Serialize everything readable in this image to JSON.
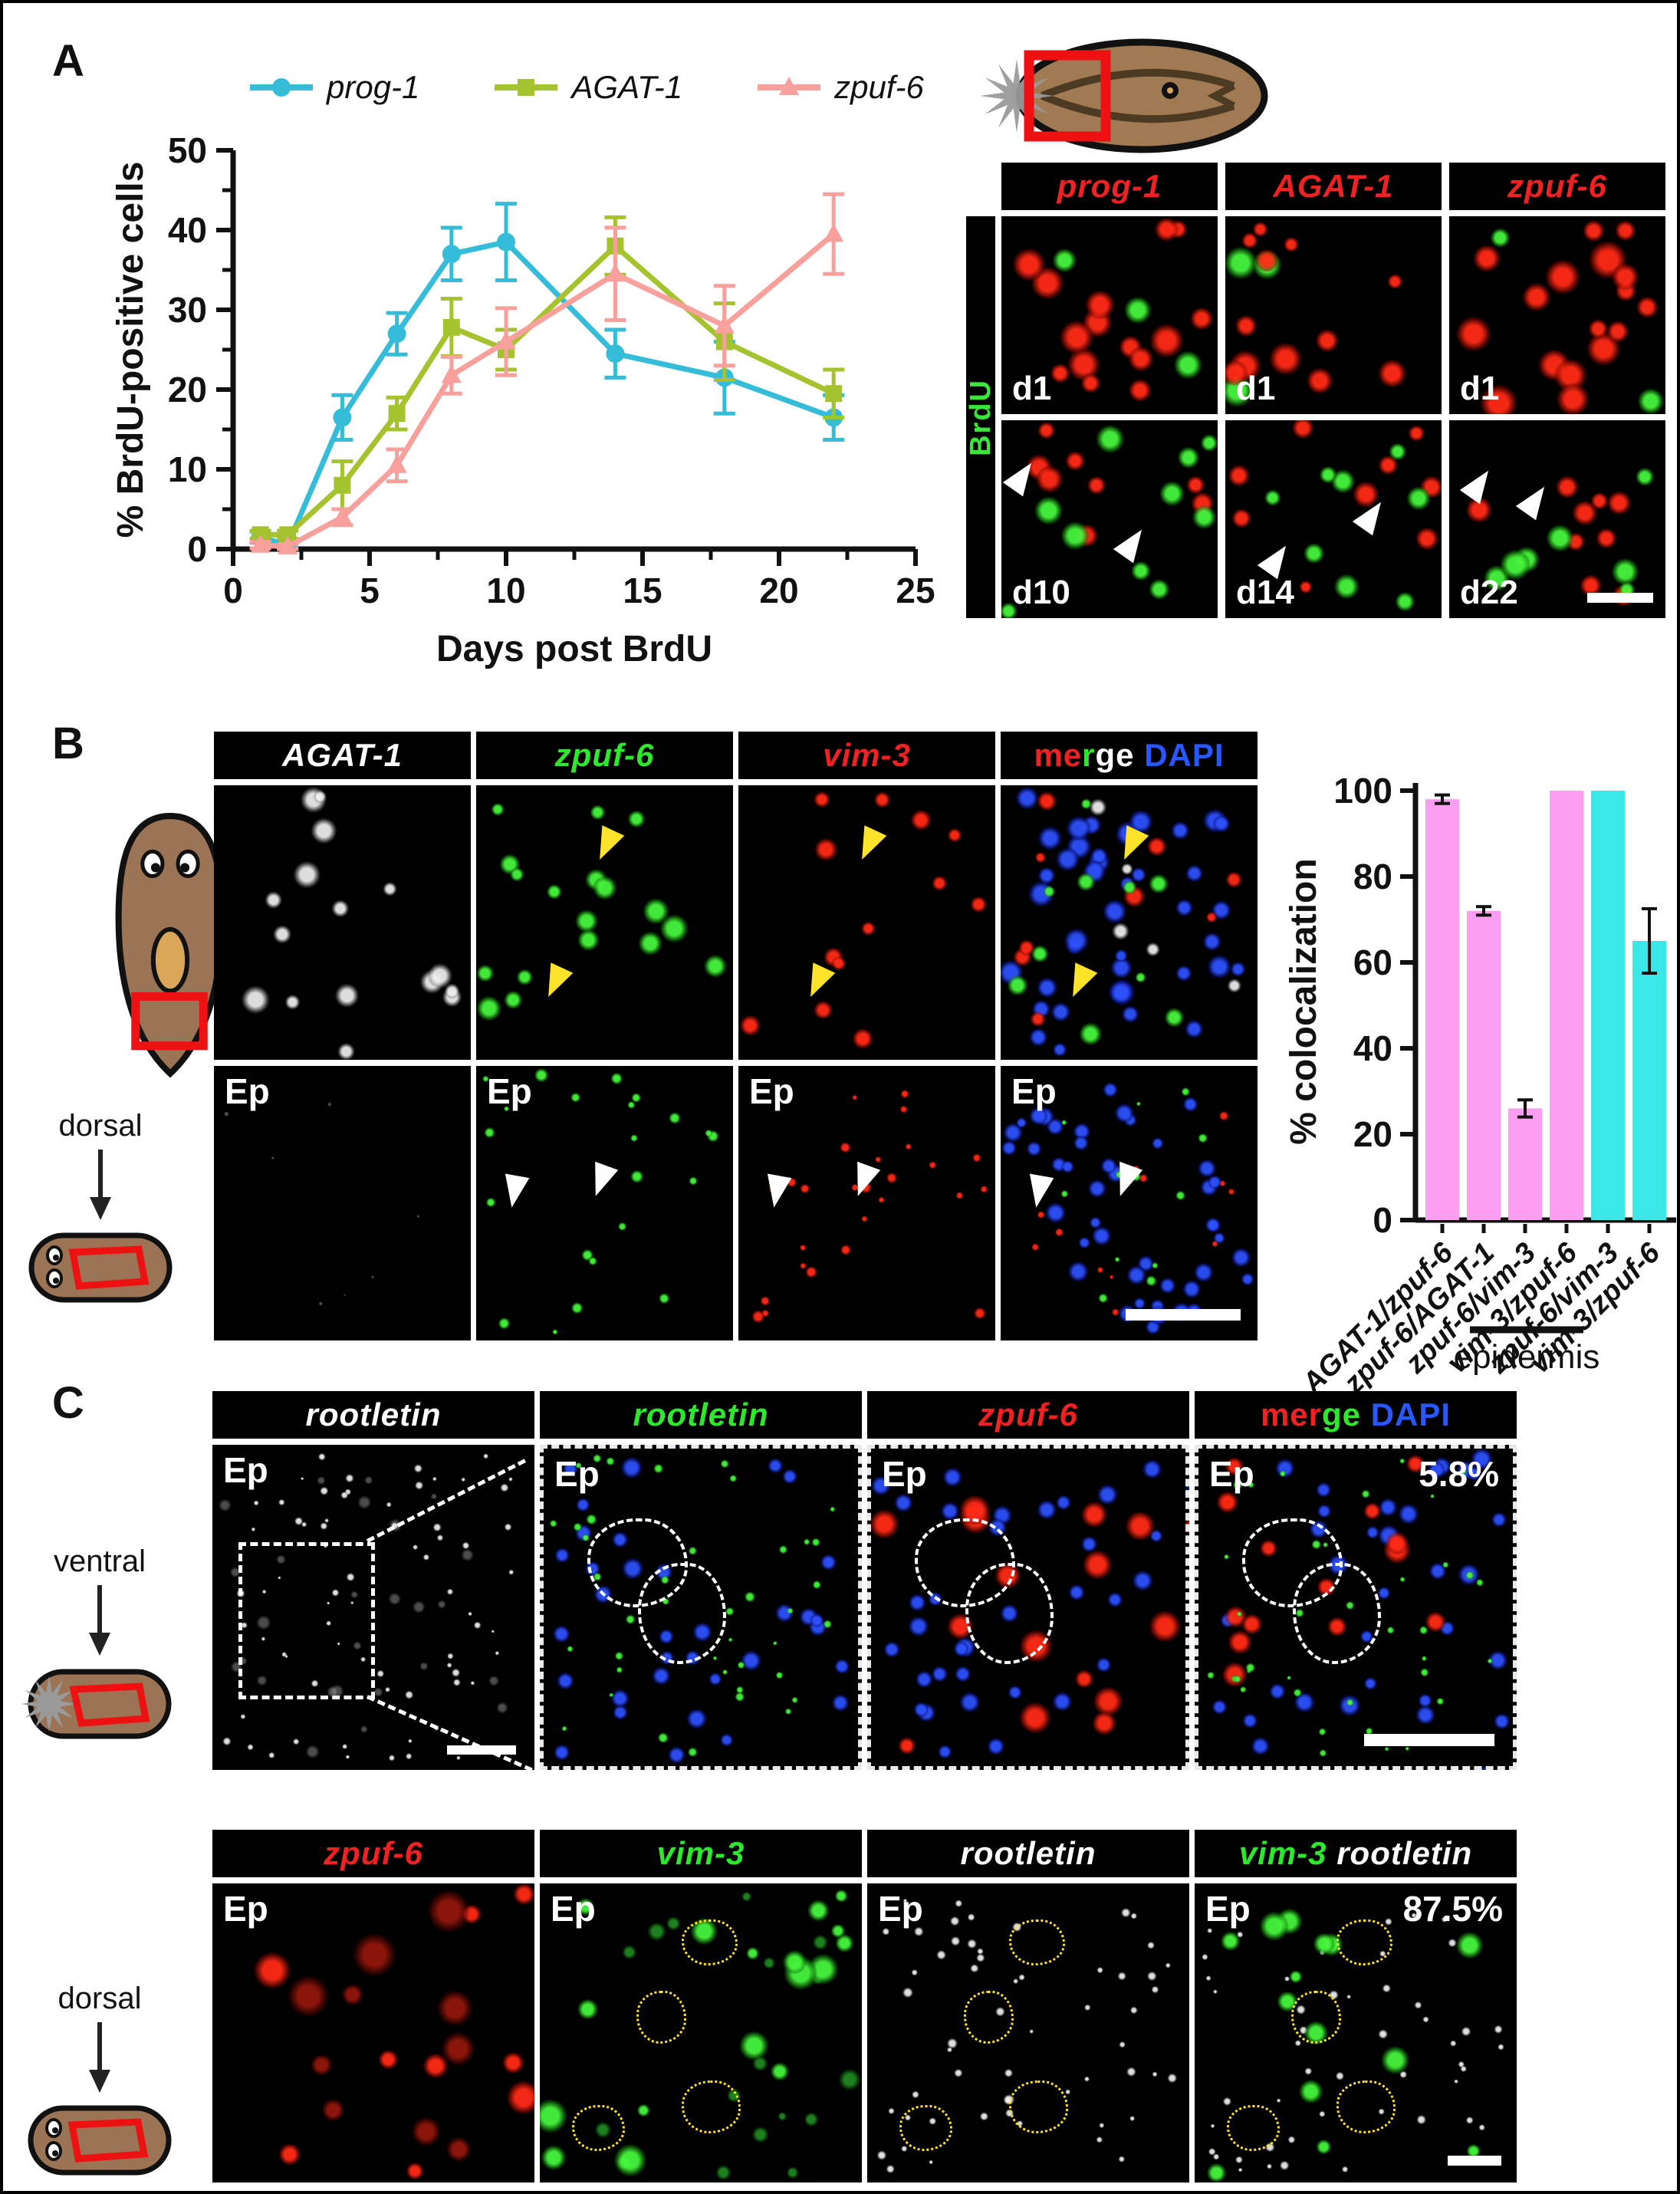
{
  "panelA": {
    "label": "A",
    "legend": [
      {
        "label": "prog-1",
        "color": "#35bcd9",
        "marker": "circle"
      },
      {
        "label": "AGAT-1",
        "color": "#a5c32e",
        "marker": "square"
      },
      {
        "label": "zpuf-6",
        "color": "#f8a19c",
        "marker": "triangle"
      }
    ],
    "micro": {
      "headers": [
        {
          "text": "prog-1",
          "color": "#ee2222"
        },
        {
          "text": "AGAT-1",
          "color": "#ee2222"
        },
        {
          "text": "zpuf-6",
          "color": "#ee2222"
        }
      ],
      "side_label": {
        "text": "BrdU",
        "color": "#39e639"
      },
      "tiles": [
        {
          "label": "d1",
          "seed": 11,
          "fx": [
            [
              "red",
              15,
              16,
              34
            ],
            [
              "green",
              3,
              16,
              28
            ]
          ]
        },
        {
          "label": "d1",
          "seed": 22,
          "fx": [
            [
              "red",
              12,
              14,
              30
            ],
            [
              "green",
              3,
              18,
              30
            ]
          ]
        },
        {
          "label": "d1",
          "seed": 33,
          "fx": [
            [
              "red",
              17,
              16,
              36
            ],
            [
              "green",
              2,
              18,
              30
            ]
          ]
        },
        {
          "label": "d10",
          "seed": 44,
          "fx": [
            [
              "green",
              10,
              14,
              28
            ],
            [
              "red",
              8,
              12,
              26
            ]
          ]
        },
        {
          "label": "d14",
          "seed": 55,
          "fx": [
            [
              "green",
              8,
              14,
              30
            ],
            [
              "red",
              9,
              12,
              26
            ]
          ]
        },
        {
          "label": "d22",
          "seed": 66,
          "fx": [
            [
              "green",
              7,
              14,
              28
            ],
            [
              "red",
              9,
              12,
              26
            ]
          ]
        }
      ]
    }
  },
  "panelB": {
    "label": "B",
    "dorsal_label": "dorsal",
    "headers": [
      {
        "text": "AGAT-1",
        "color": "#ffffff"
      },
      {
        "text": "zpuf-6",
        "color": "#2ee82e"
      },
      {
        "text": "vim-3",
        "color": "#ee2222"
      },
      {
        "parts": [
          {
            "t": "me",
            "color": "#ee2222"
          },
          {
            "t": "r",
            "color": "#2ee82e"
          },
          {
            "t": "ge",
            "color": "#ffffff"
          },
          {
            "t": " DAPI",
            "color": "#2857ff"
          }
        ]
      }
    ],
    "row1": [
      {
        "seed": 1,
        "fx": [
          [
            "gray",
            16,
            12,
            26
          ]
        ]
      },
      {
        "seed": 2,
        "fx": [
          [
            "green",
            18,
            12,
            26
          ]
        ]
      },
      {
        "seed": 3,
        "fx": [
          [
            "red",
            13,
            10,
            22
          ]
        ]
      },
      {
        "seed": 4,
        "fx": [
          [
            "gray",
            5,
            10,
            18
          ],
          [
            "green",
            10,
            10,
            22
          ],
          [
            "red",
            9,
            9,
            20
          ],
          [
            "blue",
            40,
            12,
            24
          ]
        ]
      }
    ],
    "row2": [
      {
        "label": "Ep",
        "seed": 5,
        "fx": [
          [
            "dimgray",
            7,
            2,
            5
          ]
        ]
      },
      {
        "label": "Ep",
        "seed": 6,
        "fx": [
          [
            "green",
            22,
            5,
            13
          ]
        ]
      },
      {
        "label": "Ep",
        "seed": 7,
        "fx": [
          [
            "red",
            26,
            5,
            12
          ]
        ]
      },
      {
        "label": "Ep",
        "seed": 8,
        "fx": [
          [
            "green",
            12,
            4,
            10
          ],
          [
            "red",
            12,
            4,
            9
          ],
          [
            "blue",
            44,
            10,
            20
          ]
        ]
      }
    ]
  },
  "panelC": {
    "label": "C",
    "ventral_label": "ventral",
    "dorsal_label": "dorsal",
    "row1_headers": [
      {
        "text": "rootletin",
        "color": "#ffffff"
      },
      {
        "text": "rootletin",
        "color": "#2ee82e"
      },
      {
        "text": "zpuf-6",
        "color": "#ee2222"
      },
      {
        "parts": [
          {
            "t": "mer",
            "color": "#ee2222"
          },
          {
            "t": "ge",
            "color": "#2ee82e"
          },
          {
            "t": " DAPI",
            "color": "#2857ff"
          }
        ]
      }
    ],
    "row1_tiles": [
      {
        "label": "Ep",
        "seed": 9,
        "fx": [
          [
            "gray",
            70,
            3,
            8
          ],
          [
            "dimgray",
            26,
            6,
            14
          ]
        ]
      },
      {
        "label": "Ep",
        "seed": 10,
        "fx": [
          [
            "green",
            42,
            4,
            10
          ],
          [
            "blue",
            34,
            12,
            20
          ]
        ]
      },
      {
        "label": "Ep",
        "seed": 12,
        "fx": [
          [
            "red",
            15,
            16,
            30
          ],
          [
            "blue",
            34,
            12,
            20
          ]
        ]
      },
      {
        "label": "Ep",
        "percent": "5.8%",
        "seed": 13,
        "fx": [
          [
            "green",
            38,
            4,
            9
          ],
          [
            "red",
            14,
            15,
            28
          ],
          [
            "blue",
            32,
            12,
            20
          ]
        ]
      }
    ],
    "row2_headers": [
      {
        "text": "zpuf-6",
        "color": "#ee2222"
      },
      {
        "text": "vim-3",
        "color": "#2ee82e"
      },
      {
        "text": "rootletin",
        "color": "#ffffff"
      },
      {
        "parts": [
          {
            "t": "vim-3",
            "color": "#2ee82e"
          },
          {
            "t": " rootletin",
            "color": "#ffffff"
          }
        ]
      }
    ],
    "row2_tiles": [
      {
        "label": "Ep",
        "seed": 14,
        "fx": [
          [
            "dimred",
            10,
            18,
            40
          ],
          [
            "red",
            9,
            16,
            34
          ]
        ]
      },
      {
        "label": "Ep",
        "seed": 15,
        "fx": [
          [
            "green",
            18,
            12,
            32
          ],
          [
            "dimgreen",
            16,
            8,
            20
          ]
        ]
      },
      {
        "label": "Ep",
        "seed": 16,
        "fx": [
          [
            "gray",
            56,
            4,
            10
          ]
        ]
      },
      {
        "label": "Ep",
        "percent": "87.5%",
        "seed": 17,
        "fx": [
          [
            "green",
            14,
            12,
            28
          ],
          [
            "gray",
            48,
            4,
            9
          ]
        ]
      }
    ]
  },
  "chart_data": [
    {
      "type": "line",
      "title": "",
      "xlabel": "Days post BrdU",
      "ylabel": "% BrdU-positive cells",
      "xlim": [
        0,
        25
      ],
      "ylim": [
        0,
        50
      ],
      "xticks": [
        0,
        5,
        10,
        15,
        20,
        25
      ],
      "yticks": [
        0,
        10,
        20,
        30,
        40,
        50
      ],
      "grid": false,
      "legend_position": "top",
      "x": [
        1,
        2,
        4,
        6,
        8,
        10,
        14,
        18,
        22
      ],
      "series": [
        {
          "name": "prog-1",
          "color": "#35bcd9",
          "marker": "circle",
          "values": [
            1.5,
            0.5,
            16.5,
            27,
            37,
            38.5,
            24.5,
            21.5,
            16.5
          ],
          "errors": [
            0.7,
            0.4,
            2.8,
            2.6,
            3.3,
            4.8,
            3,
            4.5,
            2.8
          ]
        },
        {
          "name": "AGAT-1",
          "color": "#a5c32e",
          "marker": "square",
          "values": [
            1.8,
            1.8,
            8,
            17,
            27.8,
            25,
            38,
            26,
            19.5
          ],
          "errors": [
            0.5,
            0.5,
            3,
            2,
            3.6,
            2.5,
            3.6,
            4.8,
            3
          ]
        },
        {
          "name": "zpuf-6",
          "color": "#f8a19c",
          "marker": "triangle",
          "values": [
            0.5,
            0.3,
            4,
            10.5,
            21.8,
            26,
            34.5,
            28,
            39.5
          ],
          "errors": [
            0.4,
            0.3,
            1,
            2,
            2.3,
            4.2,
            5.8,
            5,
            5
          ]
        }
      ]
    },
    {
      "type": "bar",
      "title": "",
      "xlabel": "",
      "ylabel": "% colocalization",
      "ylim": [
        0,
        100
      ],
      "yticks": [
        0,
        20,
        40,
        60,
        80,
        100
      ],
      "categories": [
        "AGAT-1/zpuf-6",
        "zpuf-6/AGAT-1",
        "zpuf-6/vim-3",
        "vim-3/zpuf-6",
        "zpuf-6/vim-3",
        "vim-3/zpuf-6"
      ],
      "values": [
        98,
        72,
        26,
        100,
        100,
        65
      ],
      "errors": [
        1,
        1,
        2,
        0,
        0,
        7.5
      ],
      "colors": [
        "#fb9df1",
        "#fb9df1",
        "#fb9df1",
        "#fb9df1",
        "#3ae8e8",
        "#3ae8e8"
      ],
      "group_label": "epidermis",
      "group_range": [
        4,
        5
      ]
    }
  ]
}
